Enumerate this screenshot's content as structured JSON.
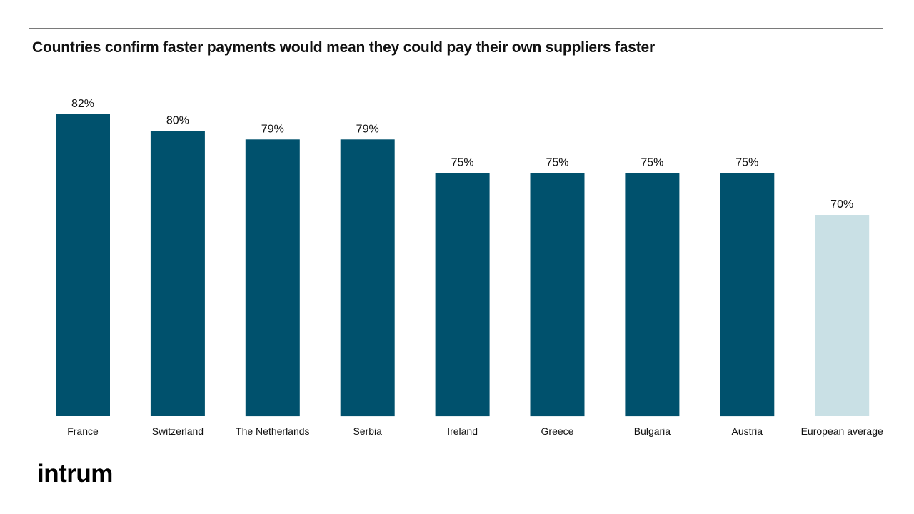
{
  "title": "Countries confirm faster payments would mean they could pay their own suppliers faster",
  "logo_text": "intrum",
  "colors": {
    "primary_bar": "#00516d",
    "average_bar": "#c9e0e5",
    "rule": "#7a7a7a"
  },
  "chart_data": {
    "type": "bar",
    "title": "Countries confirm faster payments would mean they could pay their own suppliers faster",
    "categories": [
      "France",
      "Switzerland",
      "The Netherlands",
      "Serbia",
      "Ireland",
      "Greece",
      "Bulgaria",
      "Austria",
      "European average"
    ],
    "values": [
      82,
      80,
      79,
      79,
      75,
      75,
      75,
      75,
      70
    ],
    "value_labels": [
      "82%",
      "80%",
      "79%",
      "79%",
      "75%",
      "75%",
      "75%",
      "75%",
      "70%"
    ],
    "highlight": [
      false,
      false,
      false,
      false,
      false,
      false,
      false,
      false,
      true
    ],
    "unit": "%",
    "ylim": [
      46,
      82
    ],
    "grid": false,
    "legend": "none"
  }
}
